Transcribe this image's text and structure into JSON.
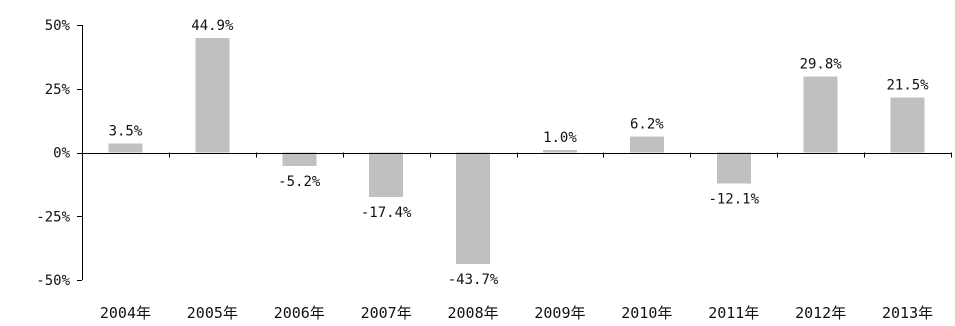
{
  "chart_data": {
    "type": "bar",
    "title": "",
    "xlabel": "",
    "ylabel": "",
    "categories": [
      "2004年",
      "2005年",
      "2006年",
      "2007年",
      "2008年",
      "2009年",
      "2010年",
      "2011年",
      "2012年",
      "2013年"
    ],
    "values": [
      3.5,
      44.9,
      -5.2,
      -17.4,
      -43.7,
      1.0,
      6.2,
      -12.1,
      29.8,
      21.5
    ],
    "data_labels": [
      "3.5%",
      "44.9%",
      "-5.2%",
      "-17.4%",
      "-43.7%",
      "1.0%",
      "6.2%",
      "-12.1%",
      "29.8%",
      "21.5%"
    ],
    "yticks": [
      50,
      25,
      0,
      -25,
      -50
    ],
    "ytick_labels": [
      "50%",
      "25%",
      "0%",
      "-25%",
      "-50%"
    ],
    "ylim": [
      -50,
      50
    ],
    "grid": false,
    "legend": "none",
    "bar_color": "#c0c0c0",
    "axis_color": "#000000"
  }
}
